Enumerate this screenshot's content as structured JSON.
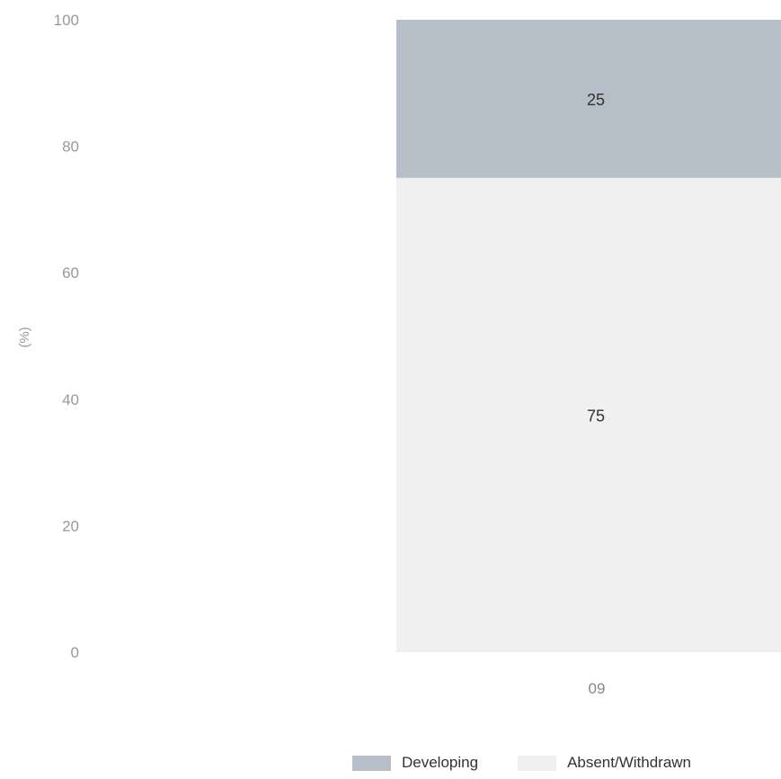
{
  "chart_data": {
    "type": "bar",
    "stacked": true,
    "categories": [
      "09"
    ],
    "series": [
      {
        "name": "Absent/Withdrawn",
        "values": [
          75
        ],
        "color": "#f0f0f1"
      },
      {
        "name": "Developing",
        "values": [
          25
        ],
        "color": "#b6bfc8"
      }
    ],
    "ylabel": "(%)",
    "ylim": [
      0,
      100
    ],
    "yticks": [
      "100",
      "80",
      "60",
      "40",
      "20",
      "0"
    ],
    "grid": false,
    "legend_position": "bottom",
    "legend_order": [
      "Developing",
      "Absent/Withdrawn"
    ]
  }
}
